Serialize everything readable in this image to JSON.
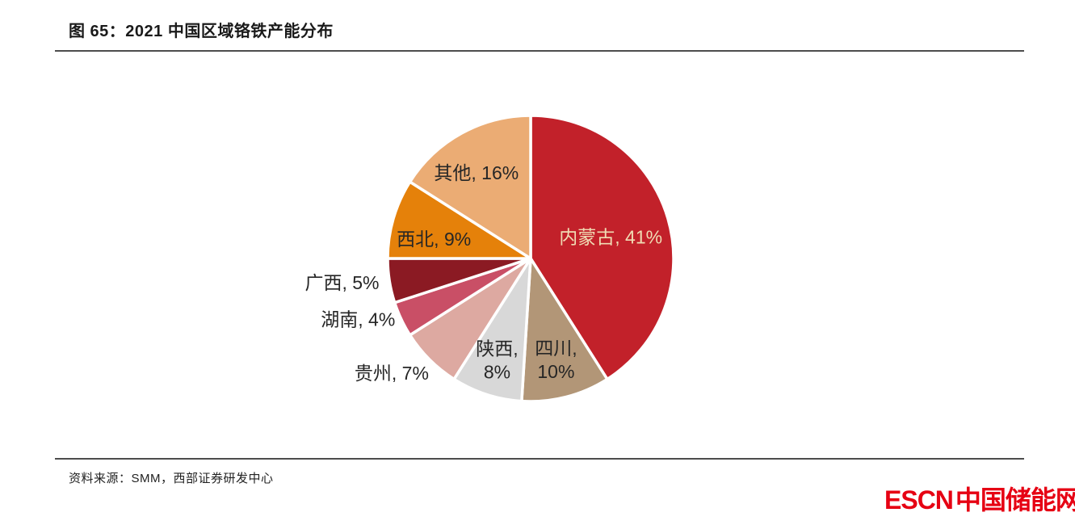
{
  "page": {
    "title": "图 65：2021 中国区域铬铁产能分布",
    "source": "资料来源：SMM，西部证券研发中心",
    "logo": {
      "en": "ESCN",
      "cn": "中国储能网"
    }
  },
  "chart_data": {
    "type": "pie",
    "title": "2021 中国区域铬铁产能分布",
    "unit": "%",
    "start_angle_deg": 0,
    "direction": "clockwise",
    "total": 100,
    "slices": [
      {
        "label": "内蒙古",
        "value": 41,
        "color": "#C2212A",
        "text_color": "#F0DCB4",
        "label_angle": 75,
        "label_r": 0.58,
        "two_line": false
      },
      {
        "label": "四川",
        "value": 10,
        "color": "#B29677",
        "text_color": "#262626",
        "label_angle": 166.5,
        "label_r": 0.76,
        "two_line": true
      },
      {
        "label": "陕西",
        "value": 8,
        "color": "#D8D8D8",
        "text_color": "#262626",
        "label_angle": 197.5,
        "label_r": 0.78,
        "two_line": true
      },
      {
        "label": "贵州",
        "value": 7,
        "color": "#DDA9A1",
        "text_color": "#262626",
        "label_angle": 230.5,
        "label_r": 1.26,
        "two_line": false
      },
      {
        "label": "湖南",
        "value": 4,
        "color": "#C94F66",
        "text_color": "#262626",
        "label_angle": 250.6,
        "label_r": 1.28,
        "two_line": false
      },
      {
        "label": "广西",
        "value": 5,
        "color": "#8B1A23",
        "text_color": "#262626",
        "label_angle": 262.7,
        "label_r": 1.33,
        "two_line": false
      },
      {
        "label": "西北",
        "value": 9,
        "color": "#E5810A",
        "text_color": "#262626",
        "label_angle": 281.3,
        "label_r": 0.69,
        "two_line": false
      },
      {
        "label": "其他",
        "value": 16,
        "color": "#EBAC74",
        "text_color": "#262626",
        "label_angle": 327.7,
        "label_r": 0.71,
        "two_line": false
      }
    ]
  }
}
